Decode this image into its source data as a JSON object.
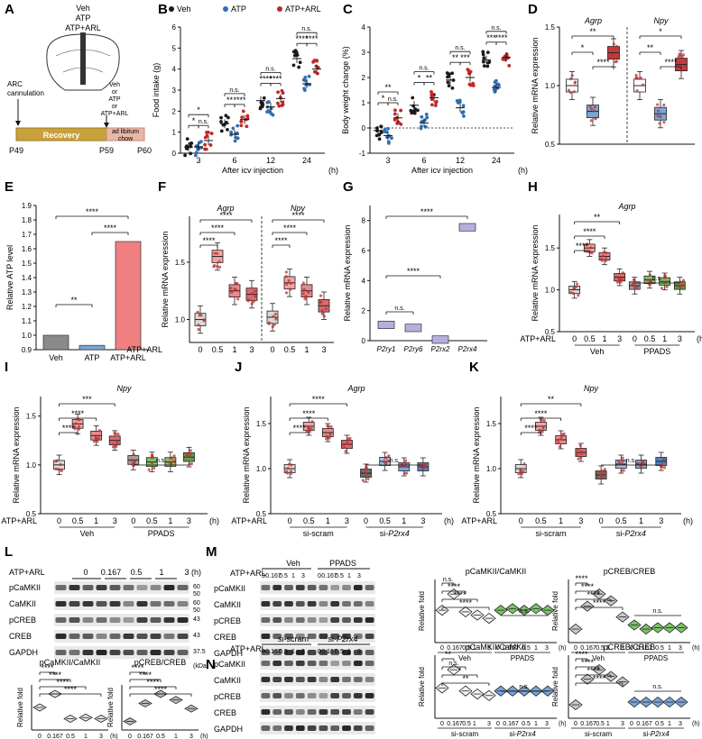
{
  "colors": {
    "veh": "#1a1a1a",
    "atp": "#2f6eb5",
    "arl": "#c0282a",
    "gray_box": "#a9a9a9",
    "pink": "#f3a3a6",
    "red_box": "#c23a3e",
    "green": "#7cc36a",
    "blue_light": "#7aa7d8"
  },
  "panels": {
    "A": {
      "letter": "A",
      "top_labels": [
        "Veh",
        "ATP",
        "ATP+ARL"
      ],
      "cannulation": "ARC\ncannulation",
      "injection": "Veh\nor\nATP\nor\nATP+ARL",
      "recovery": "Recovery",
      "chow": "ad libitum\nchow",
      "days": [
        "P49",
        "P59",
        "P60"
      ]
    },
    "B": {
      "letter": "B",
      "ylabel": "Food intake (g)",
      "xlabel": "After icv injection",
      "xunit": "(h)",
      "legend": [
        "Veh",
        "ATP",
        "ATP+ARL"
      ]
    },
    "C": {
      "letter": "C",
      "ylabel": "Body weight change (%)",
      "xlabel": "After icv injection",
      "xunit": "(h)"
    },
    "D": {
      "letter": "D",
      "ylabel": "Relative mRNA expression",
      "genes": [
        "Agrp",
        "Npy"
      ]
    },
    "E": {
      "letter": "E",
      "ylabel": "Relative ATP level"
    },
    "F": {
      "letter": "F",
      "ylabel": "Relative mRNA expression",
      "genes": [
        "Agrp",
        "Npy"
      ],
      "treat": "ATP+ARL"
    },
    "G": {
      "letter": "G",
      "ylabel": "Relative mRNA expression"
    },
    "H": {
      "letter": "H",
      "ylabel": "Relative mRNA expression",
      "gene": "Agrp",
      "treat": "ATP+ARL",
      "groups": [
        "Veh",
        "PPADS"
      ]
    },
    "I": {
      "letter": "I",
      "ylabel": "Relative mRNA expression",
      "gene": "Npy",
      "treat": "ATP+ARL",
      "groups": [
        "Veh",
        "PPADS"
      ]
    },
    "J": {
      "letter": "J",
      "ylabel": "Relative mRNA expression",
      "gene": "Agrp",
      "treat": "ATP+ARL",
      "groups": [
        "si-scram",
        "si-P2rx4"
      ]
    },
    "K": {
      "letter": "K",
      "ylabel": "Relative mRNA expression",
      "gene": "Npy",
      "treat": "ATP+ARL",
      "groups": [
        "si-scram",
        "si-P2rx4"
      ]
    },
    "L": {
      "letter": "L",
      "treat": "ATP+ARL",
      "times": [
        "0",
        "0.167",
        "0.5",
        "1",
        "3"
      ],
      "unit": "(h)",
      "bands": [
        "pCaMKII",
        "CaMKII",
        "pCREB",
        "CREB",
        "GAPDH"
      ],
      "kda": [
        "60\n50",
        "60\n50",
        "43",
        "43",
        "37.5"
      ],
      "kda_unit": "(kDa)",
      "q1_title": "pCaMKII/CaMKII",
      "q2_title": "pCREB/CREB",
      "qy": "Relative fold"
    },
    "M": {
      "letter": "M",
      "treat": "ATP+ARL",
      "groups": [
        "Veh",
        "PPADS"
      ],
      "bands": [
        "pCaMKII",
        "CaMKII",
        "pCREB",
        "CREB",
        "GAPDH"
      ],
      "q1_title": "pCaMKII/CaMKII",
      "q2_title": "pCREB/CREB",
      "qy": "Relative fold"
    },
    "N": {
      "letter": "N",
      "treat": "ATP+ARL",
      "groups": [
        "si-scram",
        "si-P2rx4"
      ],
      "bands": [
        "pCaMKII",
        "CaMKII",
        "pCREB",
        "CREB",
        "GAPDH"
      ],
      "q1_title": "pCaMKII/CaMKII",
      "q2_title": "pCREB/CREB",
      "qy": "Relative fold"
    }
  },
  "chart_data": [
    {
      "panel": "B",
      "type": "scatter",
      "title": "Food intake",
      "xlabel": "After icv injection (h)",
      "ylabel": "Food intake (g)",
      "categories": [
        "3",
        "6",
        "12",
        "24"
      ],
      "ylim": [
        0,
        6
      ],
      "yticks": [
        0,
        1,
        2,
        3,
        4,
        5,
        6
      ],
      "series": [
        {
          "name": "Veh",
          "values": [
            0.3,
            1.4,
            2.5,
            4.5
          ]
        },
        {
          "name": "ATP",
          "values": [
            0.3,
            0.9,
            2.2,
            3.3
          ]
        },
        {
          "name": "ATP+ARL",
          "values": [
            0.6,
            1.6,
            2.6,
            4.0
          ]
        }
      ],
      "significance": [
        [
          "*",
          "n.s.",
          "*"
        ],
        [
          "**",
          "****",
          "n.s."
        ],
        [
          "****",
          "****",
          "n.s."
        ],
        [
          "****",
          "****",
          "n.s."
        ]
      ]
    },
    {
      "panel": "C",
      "type": "scatter",
      "title": "Body weight change",
      "xlabel": "After icv injection (h)",
      "ylabel": "Body weight change (%)",
      "categories": [
        "3",
        "6",
        "12",
        "24"
      ],
      "ylim": [
        -1,
        4
      ],
      "yticks": [
        -1,
        0,
        1,
        2,
        3,
        4
      ],
      "series": [
        {
          "name": "Veh",
          "values": [
            -0.1,
            0.9,
            1.9,
            2.7
          ]
        },
        {
          "name": "ATP",
          "values": [
            -0.3,
            0.2,
            0.8,
            1.6
          ]
        },
        {
          "name": "ATP+ARL",
          "values": [
            0.4,
            1.2,
            2.0,
            2.8
          ]
        }
      ],
      "significance": [
        [
          "*",
          "n.s.",
          "**"
        ],
        [
          "*",
          "**",
          "n.s."
        ],
        [
          "**",
          "***",
          "n.s."
        ],
        [
          "***",
          "****",
          "n.s."
        ]
      ]
    },
    {
      "panel": "D",
      "type": "box",
      "ylabel": "Relative mRNA expression",
      "ylim": [
        0.5,
        1.5
      ],
      "yticks": [
        0.5,
        1.0,
        1.5
      ],
      "groups": [
        {
          "gene": "Agrp",
          "categories": [
            "Veh",
            "ATP",
            "ATP+ARL"
          ],
          "medians": [
            1.0,
            0.78,
            1.28
          ]
        },
        {
          "gene": "Npy",
          "categories": [
            "Veh",
            "ATP",
            "ATP+ARL"
          ],
          "medians": [
            1.0,
            0.76,
            1.18
          ]
        }
      ],
      "significance": [
        "**",
        "*",
        "****",
        "*",
        "**",
        "****"
      ]
    },
    {
      "panel": "E",
      "type": "bar",
      "ylabel": "Relative ATP level",
      "categories": [
        "Veh",
        "ATP",
        "ATP+ARL"
      ],
      "values": [
        1.0,
        0.93,
        1.65
      ],
      "ylim": [
        0.9,
        1.9
      ],
      "yticks": [
        0.9,
        1.0,
        1.1,
        1.2,
        1.3,
        1.4,
        1.5,
        1.6,
        1.7,
        1.8,
        1.9
      ],
      "significance": [
        "****",
        "**",
        "****"
      ]
    },
    {
      "panel": "F",
      "type": "box",
      "ylabel": "Relative mRNA expression",
      "xlabel": "ATP+ARL (h)",
      "ylim": [
        0.8,
        1.9
      ],
      "yticks": [
        1.0,
        1.5
      ],
      "categories": [
        "0",
        "0.5",
        "1",
        "3"
      ],
      "groups": [
        {
          "gene": "Agrp",
          "medians": [
            1.0,
            1.55,
            1.25,
            1.22
          ]
        },
        {
          "gene": "Npy",
          "medians": [
            1.02,
            1.32,
            1.25,
            1.12
          ]
        }
      ],
      "significance": [
        "****",
        "****",
        "****",
        "****",
        "****",
        "****"
      ]
    },
    {
      "panel": "G",
      "type": "bar",
      "ylabel": "Relative mRNA expression",
      "categories": [
        "P2ry1",
        "P2ry6",
        "P2rx2",
        "P2rx4"
      ],
      "values": [
        1.0,
        0.8,
        0.02,
        7.5
      ],
      "ylim": [
        0,
        9
      ],
      "yticks": [
        0,
        2,
        4,
        6,
        8
      ],
      "significance": [
        "n.s.",
        "****",
        "****"
      ]
    },
    {
      "panel": "H",
      "type": "box",
      "ylabel": "Relative mRNA expression",
      "xlabel": "ATP+ARL (h)",
      "ylim": [
        0.5,
        1.9
      ],
      "yticks": [
        0.5,
        1.0,
        1.5
      ],
      "categories": [
        "0",
        "0.5",
        "1",
        "3",
        "0",
        "0.5",
        "1",
        "3"
      ],
      "groups": [
        {
          "name": "Veh",
          "medians": [
            1.0,
            1.5,
            1.4,
            1.15
          ]
        },
        {
          "name": "PPADS",
          "medians": [
            1.05,
            1.12,
            1.1,
            1.05
          ]
        }
      ],
      "significance": [
        "****",
        "****",
        "**",
        "n.s."
      ]
    },
    {
      "panel": "I",
      "type": "box",
      "ylabel": "Relative mRNA expression",
      "xlabel": "ATP+ARL (h)",
      "ylim": [
        0.5,
        1.7
      ],
      "yticks": [
        0.5,
        1.0,
        1.5
      ],
      "categories": [
        "0",
        "0.5",
        "1",
        "3",
        "0",
        "0.5",
        "1",
        "3"
      ],
      "groups": [
        {
          "name": "Veh",
          "medians": [
            1.0,
            1.42,
            1.3,
            1.25
          ]
        },
        {
          "name": "PPADS",
          "medians": [
            1.05,
            1.03,
            1.03,
            1.08
          ]
        }
      ],
      "significance": [
        "****",
        "****",
        "***",
        "n.s."
      ]
    },
    {
      "panel": "J",
      "type": "box",
      "ylabel": "Relative mRNA expression",
      "xlabel": "ATP+ARL (h)",
      "ylim": [
        0.5,
        1.8
      ],
      "yticks": [
        0.5,
        1.0,
        1.5
      ],
      "categories": [
        "0",
        "0.5",
        "1",
        "3",
        "0",
        "0.5",
        "1",
        "3"
      ],
      "groups": [
        {
          "name": "si-scram",
          "medians": [
            1.0,
            1.47,
            1.4,
            1.27
          ]
        },
        {
          "name": "si-P2rx4",
          "medians": [
            0.95,
            1.08,
            1.02,
            1.02
          ]
        }
      ],
      "significance": [
        "****",
        "****",
        "****",
        "n.s."
      ]
    },
    {
      "panel": "K",
      "type": "box",
      "ylabel": "Relative mRNA expression",
      "xlabel": "ATP+ARL (h)",
      "ylim": [
        0.5,
        1.8
      ],
      "yticks": [
        0.5,
        1.0,
        1.5
      ],
      "categories": [
        "0",
        "0.5",
        "1",
        "3",
        "0",
        "0.5",
        "1",
        "3"
      ],
      "groups": [
        {
          "name": "si-scram",
          "medians": [
            1.0,
            1.47,
            1.32,
            1.18
          ]
        },
        {
          "name": "si-P2rx4",
          "medians": [
            0.93,
            1.05,
            1.05,
            1.08
          ]
        }
      ],
      "significance": [
        "****",
        "****",
        "**",
        "n.s."
      ]
    },
    {
      "panel": "L",
      "type": "violin",
      "title": "pCaMKII/CaMKII",
      "ylabel": "Relative fold",
      "categories": [
        "0",
        "0.167",
        "0.5",
        "1",
        "3"
      ],
      "values": [
        1.0,
        1.6,
        0.5,
        0.55,
        0.5
      ],
      "significance": [
        "****",
        "****",
        "****",
        "****"
      ]
    },
    {
      "panel": "L",
      "type": "violin",
      "title": "pCREB/CREB",
      "ylabel": "Relative fold",
      "categories": [
        "0",
        "0.167",
        "0.5",
        "1",
        "3"
      ],
      "values": [
        1.0,
        3.1,
        4.2,
        3.5,
        2.5
      ],
      "significance": [
        "****",
        "****",
        "****",
        "****"
      ]
    },
    {
      "panel": "M",
      "type": "violin",
      "title": "pCaMKII/CaMKII",
      "ylabel": "Relative fold",
      "categories": [
        "0",
        "0.167",
        "0.5",
        "1",
        "3",
        "0",
        "0.167",
        "0.5",
        "1",
        "3"
      ],
      "values": [
        1.0,
        1.5,
        0.95,
        0.85,
        0.75,
        1.0,
        1.05,
        1.0,
        1.05,
        1.0
      ],
      "significance": [
        "n.s.",
        "****",
        "****",
        "****",
        "n.s."
      ]
    },
    {
      "panel": "M",
      "type": "violin",
      "title": "pCREB/CREB",
      "ylabel": "Relative fold",
      "categories": [
        "0",
        "0.167",
        "0.5",
        "1",
        "3",
        "0",
        "0.167",
        "0.5",
        "1",
        "3"
      ],
      "values": [
        1.0,
        2.7,
        3.6,
        3.1,
        1.9,
        1.3,
        1.0,
        1.1,
        1.1,
        1.1
      ],
      "significance": [
        "****",
        "****",
        "****",
        "****",
        "n.s."
      ]
    },
    {
      "panel": "N",
      "type": "violin",
      "title": "pCaMKII/CaMKII",
      "ylabel": "Relative fold",
      "categories": [
        "0",
        "0.167",
        "0.5",
        "1",
        "3",
        "0",
        "0.167",
        "0.5",
        "1",
        "3"
      ],
      "values": [
        1.0,
        1.6,
        0.9,
        0.8,
        0.75,
        0.9,
        0.9,
        0.9,
        0.9,
        0.9
      ],
      "significance": [
        "**",
        "n.s.",
        "*",
        "**",
        "n.s."
      ]
    },
    {
      "panel": "N",
      "type": "violin",
      "title": "pCREB/CREB",
      "ylabel": "Relative fold",
      "categories": [
        "0",
        "0.167",
        "0.5",
        "1",
        "3",
        "0",
        "0.167",
        "0.5",
        "1",
        "3"
      ],
      "values": [
        1.0,
        2.9,
        3.6,
        3.1,
        2.7,
        1.2,
        1.2,
        1.2,
        1.2,
        1.2
      ],
      "significance": [
        "****",
        "****",
        "****",
        "****",
        "n.s."
      ]
    }
  ]
}
